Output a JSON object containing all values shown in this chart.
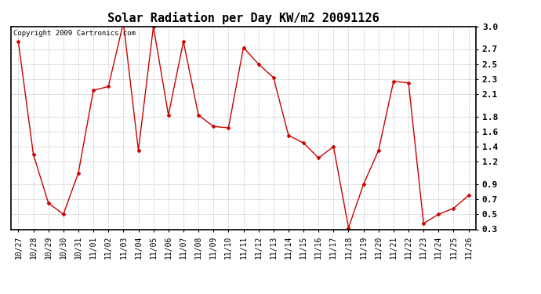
{
  "title": "Solar Radiation per Day KW/m2 20091126",
  "copyright_text": "Copyright 2009 Cartronics.com",
  "dates": [
    "10/27",
    "10/28",
    "10/29",
    "10/30",
    "10/31",
    "11/01",
    "11/02",
    "11/03",
    "11/04",
    "11/05",
    "11/06",
    "11/07",
    "11/08",
    "11/09",
    "11/10",
    "11/11",
    "11/12",
    "11/13",
    "11/14",
    "11/15",
    "11/16",
    "11/17",
    "11/18",
    "11/19",
    "11/20",
    "11/21",
    "11/22",
    "11/23",
    "11/24",
    "11/25",
    "11/26"
  ],
  "values": [
    2.8,
    1.3,
    0.65,
    0.5,
    1.05,
    2.15,
    2.2,
    3.05,
    1.35,
    3.0,
    1.82,
    2.8,
    1.82,
    1.67,
    1.65,
    2.72,
    2.5,
    2.32,
    1.55,
    1.45,
    1.25,
    1.4,
    0.32,
    0.9,
    1.35,
    2.27,
    2.25,
    0.38,
    0.5,
    0.58,
    0.75
  ],
  "line_color": "#cc0000",
  "marker_color": "#cc0000",
  "bg_color": "#ffffff",
  "plot_bg_color": "#ffffff",
  "grid_color": "#aaaaaa",
  "ylim_min": 0.3,
  "ylim_max": 3.0,
  "yticks": [
    0.3,
    0.5,
    0.7,
    0.9,
    1.2,
    1.4,
    1.6,
    1.8,
    2.1,
    2.3,
    2.5,
    2.7,
    3.0
  ],
  "ytick_labels": [
    "0.3",
    "0.5",
    "0.7",
    "0.9",
    "1.2",
    "1.4",
    "1.6",
    "1.8",
    "2.1",
    "2.3",
    "2.5",
    "2.7",
    "3.0"
  ],
  "title_fontsize": 11,
  "copyright_fontsize": 6.5,
  "tick_fontsize": 7
}
